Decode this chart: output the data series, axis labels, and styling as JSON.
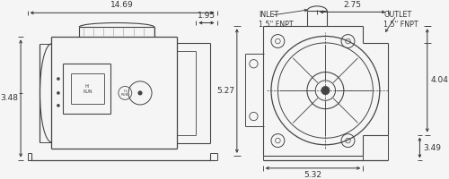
{
  "bg_color": "#f5f5f5",
  "line_color": "#444444",
  "dim_color": "#333333",
  "font_size_dim": 6.5,
  "font_size_label": 5.8,
  "figsize": [
    5.0,
    2.0
  ],
  "dpi": 100,
  "left_view": {
    "dim_top_full": "14.69",
    "dim_top_inner": "1.95",
    "dim_left": "3.48"
  },
  "right_view": {
    "dim_top": "2.75",
    "dim_left": "5.27",
    "dim_right": "4.04",
    "dim_bottom_right": "3.49",
    "dim_bottom": "5.32",
    "inlet_label": "INLET\n1.5\" FNPT",
    "outlet_label": "OUTLET\n1.5\" FNPT"
  }
}
